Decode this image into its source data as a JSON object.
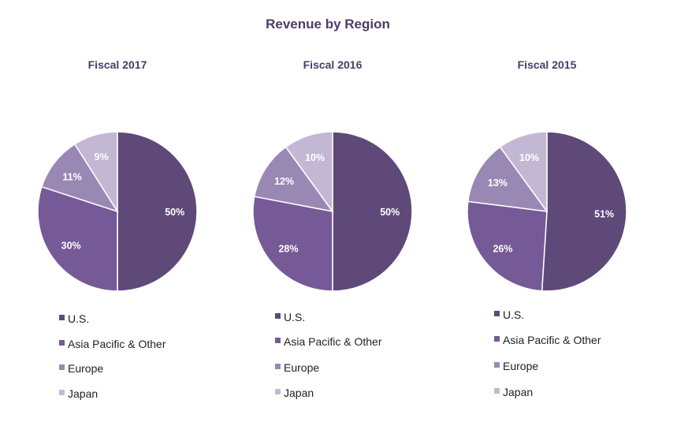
{
  "chart_data": [
    {
      "type": "pie",
      "title": "Fiscal 2017",
      "categories": [
        "U.S.",
        "Asia Pacific & Other",
        "Europe",
        "Japan"
      ],
      "values": [
        50,
        30,
        11,
        9
      ],
      "labels": [
        "50%",
        "30%",
        "11%",
        "9%"
      ]
    },
    {
      "type": "pie",
      "title": "Fiscal 2016",
      "categories": [
        "U.S.",
        "Asia Pacific & Other",
        "Europe",
        "Japan"
      ],
      "values": [
        50,
        28,
        12,
        10
      ],
      "labels": [
        "50%",
        "28%",
        "12%",
        "10%"
      ]
    },
    {
      "type": "pie",
      "title": "Fiscal 2015",
      "categories": [
        "U.S.",
        "Asia Pacific & Other",
        "Europe",
        "Japan"
      ],
      "values": [
        51,
        26,
        13,
        10
      ],
      "labels": [
        "51%",
        "26%",
        "13%",
        "10%"
      ]
    }
  ],
  "title": "Revenue by Region",
  "colors": [
    "#5e4979",
    "#765a97",
    "#9a88b4",
    "#c3b8d4"
  ]
}
